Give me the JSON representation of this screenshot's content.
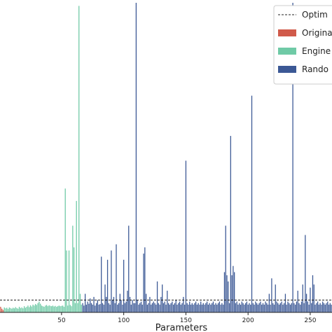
{
  "chart_data": {
    "type": "bar",
    "title": "",
    "xlabel": "Parameters",
    "ylabel": "",
    "xlim": [
      0,
      267
    ],
    "ylim": [
      0,
      1.0
    ],
    "x_ticks": [
      50,
      100,
      150,
      200,
      250
    ],
    "grid": false,
    "legend_position": "top-right",
    "optimum_line": {
      "label": "Optim",
      "value": 0.04
    },
    "series": [
      {
        "name": "Origina",
        "color": "#d05a4a",
        "points": [
          [
            1,
            0.018
          ],
          [
            2,
            0.012
          ],
          [
            3,
            0.008
          ]
        ]
      },
      {
        "name": "Engine",
        "color": "#6fcaa6",
        "points": [
          [
            4,
            0.016
          ],
          [
            5,
            0.013
          ],
          [
            6,
            0.015
          ],
          [
            7,
            0.011
          ],
          [
            8,
            0.016
          ],
          [
            9,
            0.014
          ],
          [
            10,
            0.012
          ],
          [
            11,
            0.015
          ],
          [
            12,
            0.013
          ],
          [
            13,
            0.017
          ],
          [
            14,
            0.014
          ],
          [
            15,
            0.012
          ],
          [
            16,
            0.018
          ],
          [
            17,
            0.014
          ],
          [
            18,
            0.016
          ],
          [
            19,
            0.013
          ],
          [
            20,
            0.02
          ],
          [
            21,
            0.015
          ],
          [
            22,
            0.018
          ],
          [
            23,
            0.022
          ],
          [
            24,
            0.017
          ],
          [
            25,
            0.023
          ],
          [
            26,
            0.019
          ],
          [
            27,
            0.025
          ],
          [
            28,
            0.022
          ],
          [
            29,
            0.027
          ],
          [
            30,
            0.024
          ],
          [
            31,
            0.03
          ],
          [
            32,
            0.035
          ],
          [
            33,
            0.028
          ],
          [
            34,
            0.022
          ],
          [
            35,
            0.02
          ],
          [
            36,
            0.018
          ],
          [
            37,
            0.022
          ],
          [
            38,
            0.024
          ],
          [
            39,
            0.02
          ],
          [
            40,
            0.023
          ],
          [
            41,
            0.021
          ],
          [
            42,
            0.02
          ],
          [
            43,
            0.022
          ],
          [
            44,
            0.019
          ],
          [
            45,
            0.021
          ],
          [
            46,
            0.018
          ],
          [
            47,
            0.02
          ],
          [
            48,
            0.022
          ],
          [
            49,
            0.02
          ],
          [
            50,
            0.021
          ],
          [
            51,
            0.022
          ],
          [
            52,
            0.018
          ],
          [
            53,
            0.4
          ],
          [
            54,
            0.2
          ],
          [
            55,
            0.022
          ],
          [
            56,
            0.2
          ],
          [
            57,
            0.024
          ],
          [
            58,
            0.02
          ],
          [
            59,
            0.28
          ],
          [
            60,
            0.21
          ],
          [
            61,
            0.03
          ],
          [
            62,
            0.36
          ],
          [
            63,
            0.03
          ],
          [
            64,
            0.99
          ],
          [
            65,
            0.06
          ],
          [
            66,
            0.025
          ]
        ]
      },
      {
        "name": "Rando",
        "color": "#3b5895",
        "points": [
          [
            67,
            0.03
          ],
          [
            68,
            0.022
          ],
          [
            69,
            0.06
          ],
          [
            70,
            0.025
          ],
          [
            71,
            0.035
          ],
          [
            72,
            0.028
          ],
          [
            73,
            0.045
          ],
          [
            74,
            0.03
          ],
          [
            75,
            0.025
          ],
          [
            76,
            0.05
          ],
          [
            77,
            0.022
          ],
          [
            78,
            0.03
          ],
          [
            79,
            0.04
          ],
          [
            80,
            0.025
          ],
          [
            81,
            0.027
          ],
          [
            82,
            0.18
          ],
          [
            83,
            0.03
          ],
          [
            84,
            0.025
          ],
          [
            85,
            0.09
          ],
          [
            86,
            0.05
          ],
          [
            87,
            0.17
          ],
          [
            88,
            0.03
          ],
          [
            89,
            0.025
          ],
          [
            90,
            0.2
          ],
          [
            91,
            0.04
          ],
          [
            92,
            0.05
          ],
          [
            93,
            0.03
          ],
          [
            94,
            0.22
          ],
          [
            95,
            0.025
          ],
          [
            96,
            0.03
          ],
          [
            97,
            0.06
          ],
          [
            98,
            0.04
          ],
          [
            99,
            0.025
          ],
          [
            100,
            0.17
          ],
          [
            101,
            0.03
          ],
          [
            102,
            0.035
          ],
          [
            103,
            0.07
          ],
          [
            104,
            0.28
          ],
          [
            105,
            0.05
          ],
          [
            106,
            0.025
          ],
          [
            107,
            0.04
          ],
          [
            108,
            0.03
          ],
          [
            109,
            0.03
          ],
          [
            110,
            1.0
          ],
          [
            111,
            0.04
          ],
          [
            112,
            0.025
          ],
          [
            113,
            0.03
          ],
          [
            114,
            0.035
          ],
          [
            115,
            0.025
          ],
          [
            116,
            0.19
          ],
          [
            117,
            0.21
          ],
          [
            118,
            0.06
          ],
          [
            119,
            0.025
          ],
          [
            120,
            0.03
          ],
          [
            121,
            0.05
          ],
          [
            122,
            0.025
          ],
          [
            123,
            0.03
          ],
          [
            124,
            0.035
          ],
          [
            125,
            0.03
          ],
          [
            126,
            0.025
          ],
          [
            127,
            0.1
          ],
          [
            128,
            0.03
          ],
          [
            129,
            0.025
          ],
          [
            130,
            0.05
          ],
          [
            131,
            0.09
          ],
          [
            132,
            0.03
          ],
          [
            133,
            0.035
          ],
          [
            134,
            0.025
          ],
          [
            135,
            0.07
          ],
          [
            136,
            0.03
          ],
          [
            137,
            0.025
          ],
          [
            138,
            0.03
          ],
          [
            139,
            0.035
          ],
          [
            140,
            0.025
          ],
          [
            141,
            0.03
          ],
          [
            142,
            0.04
          ],
          [
            143,
            0.025
          ],
          [
            144,
            0.03
          ],
          [
            145,
            0.035
          ],
          [
            146,
            0.025
          ],
          [
            147,
            0.03
          ],
          [
            148,
            0.05
          ],
          [
            149,
            0.025
          ],
          [
            150,
            0.49
          ],
          [
            151,
            0.03
          ],
          [
            152,
            0.025
          ],
          [
            153,
            0.035
          ],
          [
            154,
            0.025
          ],
          [
            155,
            0.03
          ],
          [
            156,
            0.025
          ],
          [
            157,
            0.03
          ],
          [
            158,
            0.035
          ],
          [
            159,
            0.025
          ],
          [
            160,
            0.03
          ],
          [
            161,
            0.025
          ],
          [
            162,
            0.035
          ],
          [
            163,
            0.025
          ],
          [
            164,
            0.03
          ],
          [
            165,
            0.025
          ],
          [
            166,
            0.03
          ],
          [
            167,
            0.035
          ],
          [
            168,
            0.025
          ],
          [
            169,
            0.03
          ],
          [
            170,
            0.025
          ],
          [
            171,
            0.03
          ],
          [
            172,
            0.035
          ],
          [
            173,
            0.025
          ],
          [
            174,
            0.03
          ],
          [
            175,
            0.025
          ],
          [
            176,
            0.03
          ],
          [
            177,
            0.035
          ],
          [
            178,
            0.025
          ],
          [
            179,
            0.03
          ],
          [
            180,
            0.025
          ],
          [
            181,
            0.13
          ],
          [
            182,
            0.28
          ],
          [
            183,
            0.12
          ],
          [
            184,
            0.1
          ],
          [
            185,
            0.03
          ],
          [
            186,
            0.57
          ],
          [
            187,
            0.12
          ],
          [
            188,
            0.15
          ],
          [
            189,
            0.13
          ],
          [
            190,
            0.03
          ],
          [
            191,
            0.035
          ],
          [
            192,
            0.025
          ],
          [
            193,
            0.03
          ],
          [
            194,
            0.025
          ],
          [
            195,
            0.035
          ],
          [
            196,
            0.03
          ],
          [
            197,
            0.025
          ],
          [
            198,
            0.03
          ],
          [
            199,
            0.035
          ],
          [
            200,
            0.025
          ],
          [
            201,
            0.03
          ],
          [
            202,
            0.025
          ],
          [
            203,
            0.7
          ],
          [
            204,
            0.03
          ],
          [
            205,
            0.025
          ],
          [
            206,
            0.035
          ],
          [
            207,
            0.03
          ],
          [
            208,
            0.025
          ],
          [
            209,
            0.03
          ],
          [
            210,
            0.035
          ],
          [
            211,
            0.025
          ],
          [
            212,
            0.03
          ],
          [
            213,
            0.025
          ],
          [
            214,
            0.035
          ],
          [
            215,
            0.03
          ],
          [
            216,
            0.025
          ],
          [
            217,
            0.06
          ],
          [
            218,
            0.025
          ],
          [
            219,
            0.11
          ],
          [
            220,
            0.03
          ],
          [
            221,
            0.025
          ],
          [
            222,
            0.09
          ],
          [
            223,
            0.035
          ],
          [
            224,
            0.03
          ],
          [
            225,
            0.025
          ],
          [
            226,
            0.03
          ],
          [
            227,
            0.035
          ],
          [
            228,
            0.025
          ],
          [
            229,
            0.03
          ],
          [
            230,
            0.06
          ],
          [
            231,
            0.025
          ],
          [
            232,
            0.035
          ],
          [
            233,
            0.03
          ],
          [
            234,
            0.025
          ],
          [
            235,
            0.03
          ],
          [
            236,
            1.0
          ],
          [
            237,
            0.03
          ],
          [
            238,
            0.025
          ],
          [
            239,
            0.035
          ],
          [
            240,
            0.07
          ],
          [
            241,
            0.03
          ],
          [
            242,
            0.025
          ],
          [
            243,
            0.035
          ],
          [
            244,
            0.09
          ],
          [
            245,
            0.03
          ],
          [
            246,
            0.25
          ],
          [
            247,
            0.06
          ],
          [
            248,
            0.035
          ],
          [
            249,
            0.025
          ],
          [
            250,
            0.08
          ],
          [
            251,
            0.03
          ],
          [
            252,
            0.12
          ],
          [
            253,
            0.09
          ],
          [
            254,
            0.025
          ],
          [
            255,
            0.03
          ],
          [
            256,
            0.035
          ],
          [
            257,
            0.025
          ],
          [
            258,
            0.03
          ],
          [
            259,
            0.025
          ],
          [
            260,
            0.035
          ],
          [
            261,
            0.03
          ],
          [
            262,
            0.025
          ],
          [
            263,
            0.03
          ],
          [
            264,
            0.035
          ],
          [
            265,
            0.025
          ],
          [
            266,
            0.03
          ],
          [
            267,
            0.025
          ]
        ]
      }
    ]
  }
}
